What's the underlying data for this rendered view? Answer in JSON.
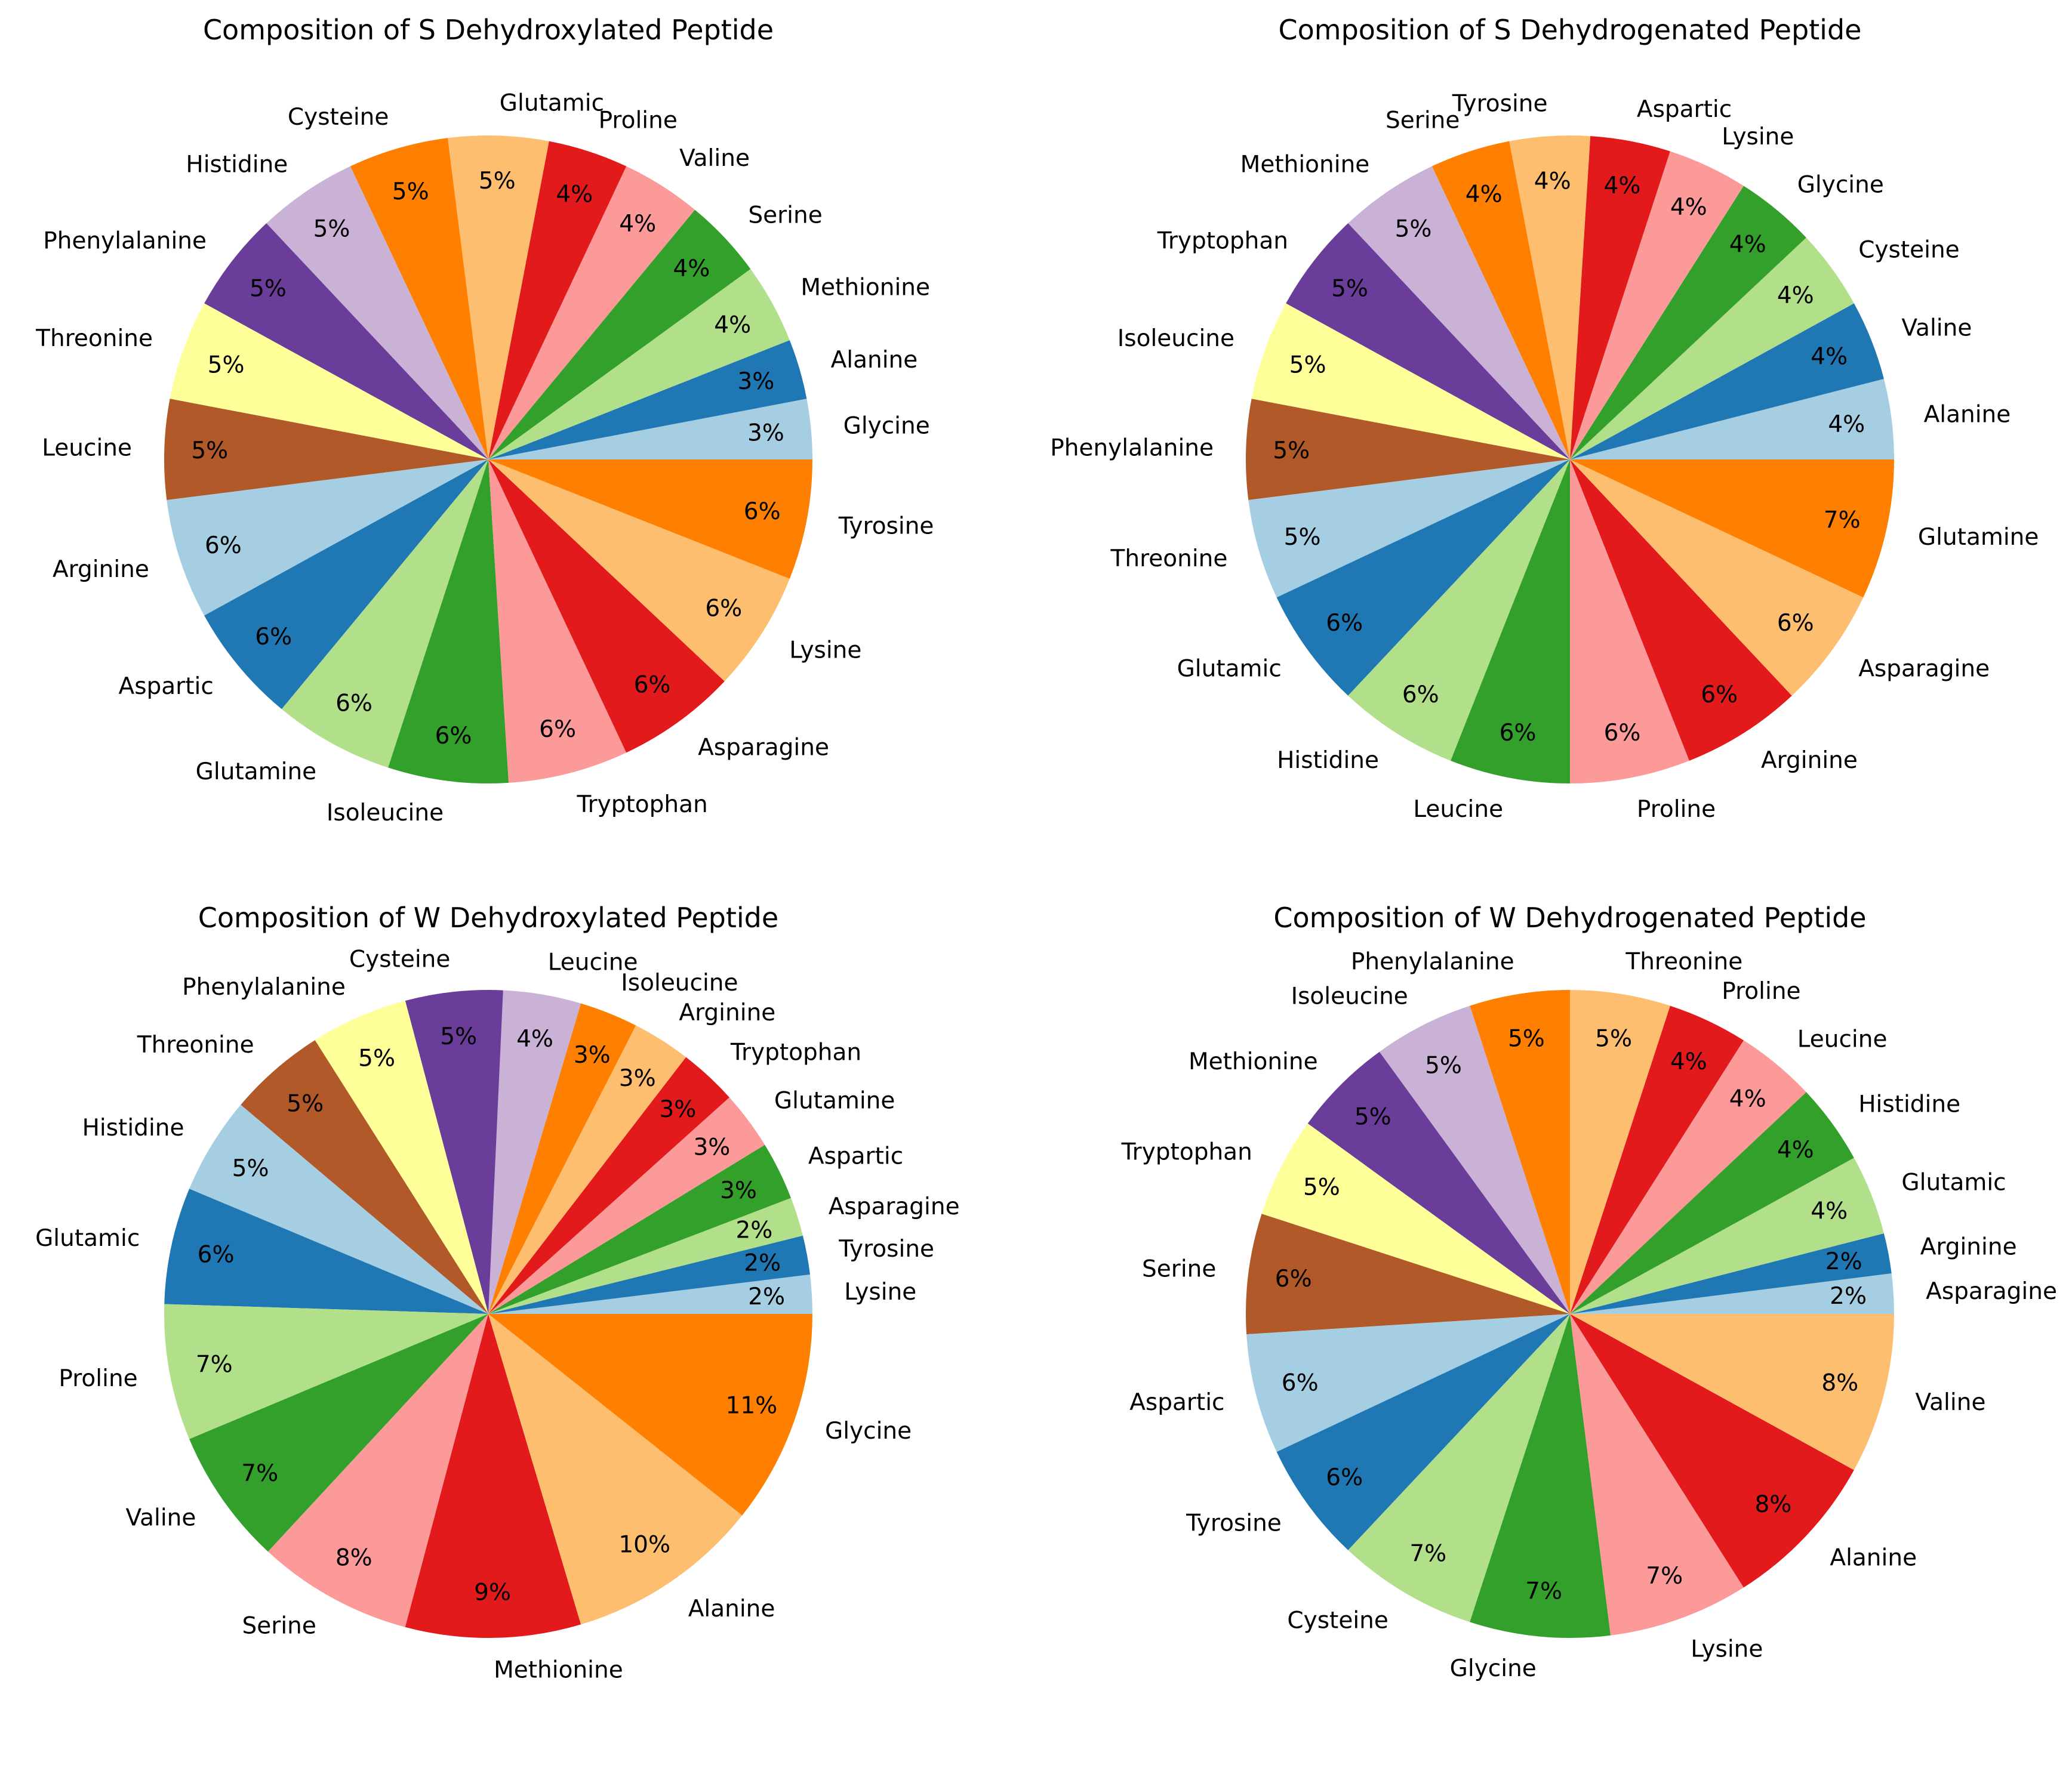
{
  "chart_data": [
    {
      "type": "pie",
      "title": "Composition of S Dehydroxylated Peptide",
      "categories": [
        "Glycine",
        "Alanine",
        "Methionine",
        "Serine",
        "Valine",
        "Proline",
        "Glutamic",
        "Cysteine",
        "Histidine",
        "Phenylalanine",
        "Threonine",
        "Leucine",
        "Arginine",
        "Aspartic",
        "Glutamine",
        "Isoleucine",
        "Tryptophan",
        "Asparagine",
        "Lysine",
        "Tyrosine"
      ],
      "values": [
        3,
        3,
        4,
        4,
        4,
        4,
        5,
        5,
        5,
        5,
        5,
        5,
        6,
        6,
        6,
        6,
        6,
        6,
        6,
        6
      ],
      "value_labels": [
        "3%",
        "3%",
        "4%",
        "4%",
        "4%",
        "4%",
        "5%",
        "5%",
        "5%",
        "5%",
        "5%",
        "5%",
        "6%",
        "6%",
        "6%",
        "6%",
        "6%",
        "6%",
        "6%",
        "6%"
      ]
    },
    {
      "type": "pie",
      "title": "Composition of S Dehydrogenated Peptide",
      "categories": [
        "Alanine",
        "Valine",
        "Cysteine",
        "Glycine",
        "Lysine",
        "Aspartic",
        "Tyrosine",
        "Serine",
        "Methionine",
        "Tryptophan",
        "Isoleucine",
        "Phenylalanine",
        "Threonine",
        "Glutamic",
        "Histidine",
        "Leucine",
        "Proline",
        "Arginine",
        "Asparagine",
        "Glutamine"
      ],
      "values": [
        4,
        4,
        4,
        4,
        4,
        4,
        4,
        4,
        5,
        5,
        5,
        5,
        5,
        6,
        6,
        6,
        6,
        6,
        6,
        7
      ],
      "value_labels": [
        "4%",
        "4%",
        "4%",
        "4%",
        "4%",
        "4%",
        "4%",
        "4%",
        "5%",
        "5%",
        "5%",
        "5%",
        "5%",
        "6%",
        "6%",
        "6%",
        "6%",
        "6%",
        "6%",
        "7%"
      ]
    },
    {
      "type": "pie",
      "title": "Composition of W Dehydroxylated Peptide",
      "categories": [
        "Lysine",
        "Tyrosine",
        "Asparagine",
        "Aspartic",
        "Glutamine",
        "Tryptophan",
        "Arginine",
        "Isoleucine",
        "Leucine",
        "Cysteine",
        "Phenylalanine",
        "Threonine",
        "Histidine",
        "Glutamic",
        "Proline",
        "Valine",
        "Serine",
        "Methionine",
        "Alanine",
        "Glycine"
      ],
      "values": [
        2,
        2,
        2,
        3,
        3,
        3,
        3,
        3,
        4,
        5,
        5,
        5,
        5,
        6,
        7,
        7,
        8,
        9,
        10,
        11
      ],
      "value_labels": [
        "2%",
        "2%",
        "2%",
        "3%",
        "3%",
        "3%",
        "3%",
        "3%",
        "4%",
        "5%",
        "5%",
        "5%",
        "5%",
        "6%",
        "7%",
        "7%",
        "8%",
        "9%",
        "10%",
        "11%"
      ]
    },
    {
      "type": "pie",
      "title": "Composition of W Dehydrogenated Peptide",
      "categories": [
        "Asparagine",
        "Arginine",
        "Glutamic",
        "Histidine",
        "Leucine",
        "Proline",
        "Threonine",
        "Phenylalanine",
        "Isoleucine",
        "Methionine",
        "Tryptophan",
        "Serine",
        "Aspartic",
        "Tyrosine",
        "Cysteine",
        "Glycine",
        "Lysine",
        "Alanine",
        "Valine"
      ],
      "values": [
        2,
        2,
        4,
        4,
        4,
        4,
        5,
        5,
        5,
        5,
        5,
        6,
        6,
        6,
        7,
        7,
        7,
        8,
        8
      ],
      "value_labels": [
        "2%",
        "2%",
        "4%",
        "4%",
        "4%",
        "4%",
        "5%",
        "5%",
        "5%",
        "5%",
        "5%",
        "6%",
        "6%",
        "6%",
        "7%",
        "7%",
        "7%",
        "8%",
        "8%"
      ]
    }
  ],
  "colors": [
    "#a6cee3",
    "#1f78b4",
    "#b2df8a",
    "#33a02c",
    "#fb9a99",
    "#e31a1c",
    "#fdbf6f",
    "#ff7f00",
    "#cab2d6",
    "#6a3d9a",
    "#ffff99",
    "#b15928"
  ]
}
